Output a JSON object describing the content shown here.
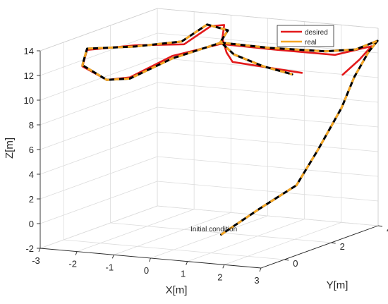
{
  "chart_data": {
    "type": "line",
    "view": "3d",
    "title": "",
    "xlabel": "X[m]",
    "ylabel": "Y[m]",
    "zlabel": "Z[m]",
    "xlim": [
      -3,
      3
    ],
    "ylim": [
      -1,
      4
    ],
    "zlim": [
      -2,
      14
    ],
    "xticks": [
      "-3",
      "-2",
      "-1",
      "0",
      "1",
      "2",
      "3"
    ],
    "yticks": [
      "0",
      "2",
      "4"
    ],
    "zticks": [
      "-2",
      "0",
      "2",
      "4",
      "6",
      "8",
      "10",
      "12",
      "14"
    ],
    "grid": true,
    "legend_position": "top-right",
    "annotations": [
      {
        "text": "Initial condition",
        "x": 1.2,
        "y": -0.5,
        "z": 0.0
      }
    ],
    "series": [
      {
        "name": "desired",
        "color": "#e31a1c",
        "style": "solid",
        "points": [
          [
            2.8,
            2.8,
            11.0
          ],
          [
            3.0,
            3.2,
            12.0
          ],
          [
            3.2,
            3.4,
            13.0
          ],
          [
            2.4,
            3.1,
            12.3
          ],
          [
            1.2,
            2.5,
            12.8
          ],
          [
            0.0,
            2.0,
            13.3
          ],
          [
            -1.0,
            1.5,
            12.4
          ],
          [
            -1.9,
            1.1,
            10.7
          ],
          [
            -2.4,
            0.9,
            10.5
          ],
          [
            -3.0,
            0.8,
            11.5
          ],
          [
            -3.0,
            1.0,
            12.7
          ],
          [
            -2.0,
            1.5,
            13.0
          ],
          [
            -1.0,
            2.0,
            13.0
          ],
          [
            -0.4,
            2.2,
            14.5
          ],
          [
            -0.1,
            2.3,
            14.6
          ],
          [
            -0.15,
            2.3,
            13.5
          ],
          [
            -0.1,
            2.4,
            12.3
          ],
          [
            0.0,
            2.5,
            11.5
          ],
          [
            1.5,
            3.1,
            10.6
          ]
        ]
      },
      {
        "name": "real",
        "color": "#f5a623",
        "style": "dashed",
        "points": [
          [
            1.6,
            -0.5,
            0.0
          ],
          [
            2.0,
            0.5,
            1.5
          ],
          [
            2.5,
            1.3,
            3.0
          ],
          [
            2.7,
            1.9,
            5.5
          ],
          [
            2.9,
            2.6,
            8.5
          ],
          [
            3.05,
            2.9,
            10.8
          ],
          [
            3.25,
            3.2,
            12.7
          ],
          [
            3.3,
            3.5,
            13.4
          ],
          [
            2.9,
            3.2,
            12.8
          ],
          [
            2.2,
            3.0,
            12.6
          ],
          [
            1.0,
            2.5,
            12.9
          ],
          [
            0.0,
            2.0,
            13.4
          ],
          [
            -1.0,
            1.5,
            12.2
          ],
          [
            -1.9,
            1.1,
            10.6
          ],
          [
            -2.4,
            0.9,
            10.5
          ],
          [
            -3.0,
            0.8,
            11.6
          ],
          [
            -3.0,
            1.0,
            12.8
          ],
          [
            -2.0,
            1.5,
            12.9
          ],
          [
            -1.0,
            1.9,
            13.3
          ],
          [
            -0.5,
            2.2,
            14.6
          ],
          [
            0.0,
            2.3,
            14.2
          ],
          [
            -0.2,
            2.3,
            13.2
          ],
          [
            0.1,
            2.4,
            12.2
          ],
          [
            0.7,
            2.7,
            11.2
          ],
          [
            1.3,
            3.0,
            10.5
          ]
        ]
      }
    ]
  }
}
